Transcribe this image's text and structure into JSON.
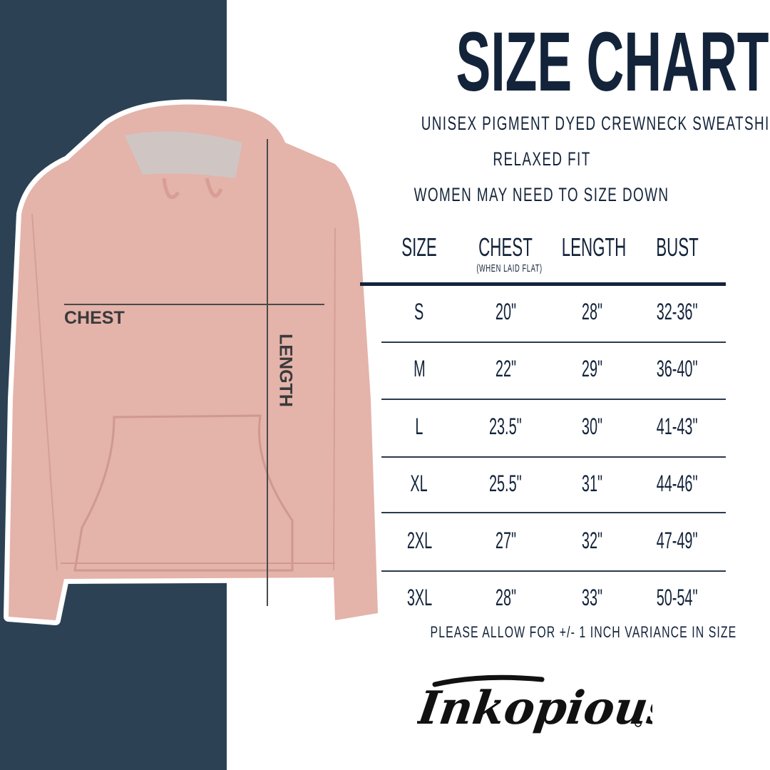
{
  "title": "SIZE CHART",
  "subtitles": [
    "UNISEX PIGMENT DYED CREWNECK SWEATSHIRT",
    "RELAXED FIT",
    "WOMEN MAY NEED TO SIZE DOWN"
  ],
  "diagram_labels": {
    "chest": "CHEST",
    "length": "LENGTH"
  },
  "table": {
    "headers": [
      "SIZE",
      "CHEST",
      "LENGTH",
      "BUST"
    ],
    "chest_note": "(WHEN LAID FLAT)",
    "rows": [
      [
        "S",
        "20\"",
        "28\"",
        "32-36\""
      ],
      [
        "M",
        "22\"",
        "29\"",
        "36-40\""
      ],
      [
        "L",
        "23.5\"",
        "30\"",
        "41-43\""
      ],
      [
        "XL",
        "25.5\"",
        "31\"",
        "44-46\""
      ],
      [
        "2XL",
        "27\"",
        "32\"",
        "47-49\""
      ],
      [
        "3XL",
        "28\"",
        "33\"",
        "50-54\""
      ]
    ]
  },
  "footnote": "PLEASE ALLOW FOR +/- 1 INCH VARIANCE IN SIZE",
  "logo_text": "Inkopious",
  "colors": {
    "navy_panel": "#2c4154",
    "text": "#13233a",
    "hoodie": "#e6b5ad"
  }
}
